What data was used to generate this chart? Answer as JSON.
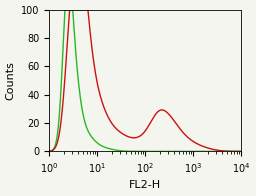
{
  "title": "",
  "xlabel": "FL2-H",
  "ylabel": "Counts",
  "ylim": [
    0,
    100
  ],
  "yticks": [
    0,
    20,
    40,
    60,
    80,
    100
  ],
  "background_color": "#f5f5f0",
  "green_color": "#22bb22",
  "red_color": "#cc1111",
  "line_width": 1.0,
  "font_size_label": 8,
  "font_size_tick": 7
}
